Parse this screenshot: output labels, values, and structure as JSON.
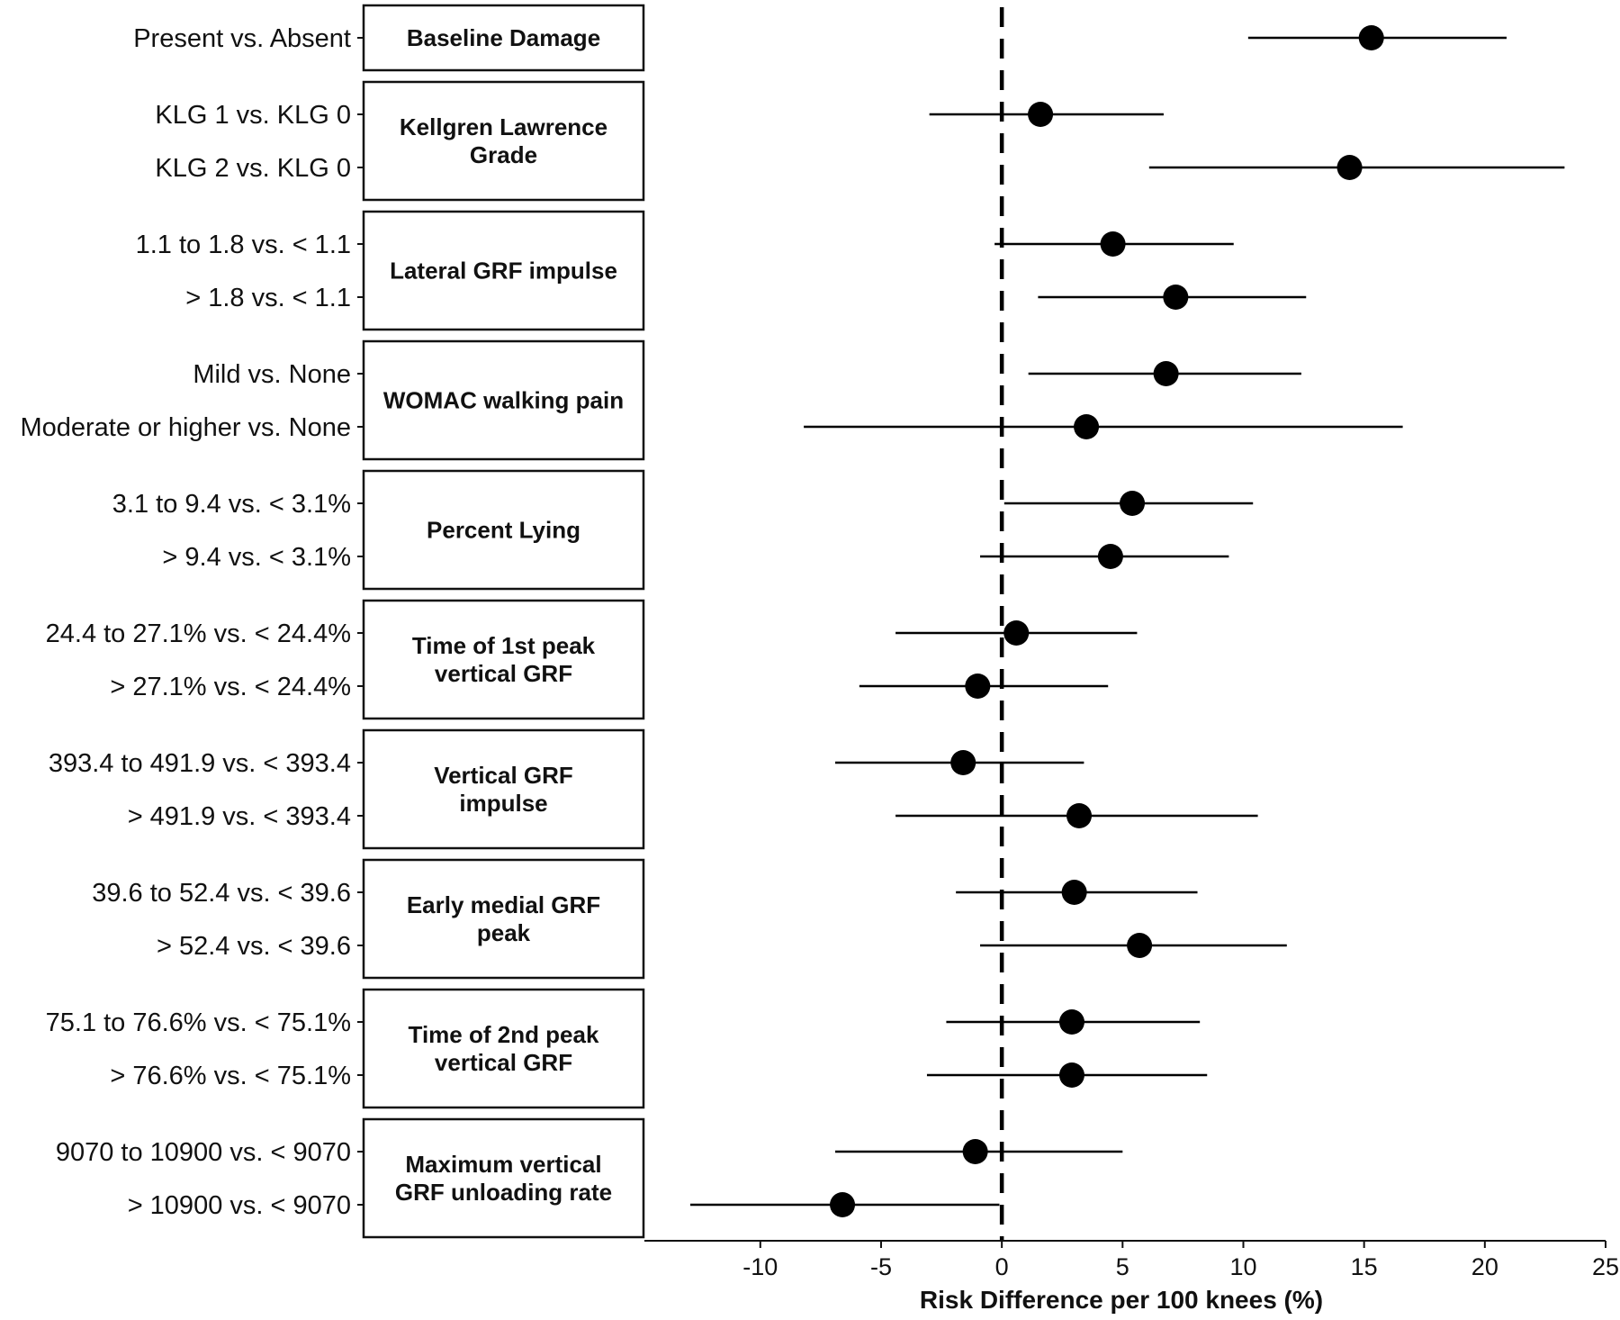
{
  "chart_data": {
    "type": "forest",
    "xlabel": "Risk Difference per 100 knees (%)",
    "xlim": [
      -14.8,
      25
    ],
    "x_ticks": [
      -10,
      -5,
      0,
      5,
      10,
      15,
      20,
      25
    ],
    "reference_line": 0,
    "groups": [
      {
        "label": [
          "Baseline Damage"
        ],
        "rows": [
          {
            "label": "Present vs. Absent",
            "estimate": 15.3,
            "lower": 10.2,
            "upper": 20.9
          }
        ]
      },
      {
        "label": [
          "Kellgren Lawrence",
          "Grade"
        ],
        "rows": [
          {
            "label": "KLG 1 vs. KLG 0",
            "estimate": 1.6,
            "lower": -3.0,
            "upper": 6.7
          },
          {
            "label": "KLG 2 vs. KLG 0",
            "estimate": 14.4,
            "lower": 6.1,
            "upper": 23.3
          }
        ]
      },
      {
        "label": [
          "Lateral GRF impulse"
        ],
        "rows": [
          {
            "label": "1.1 to 1.8 vs. < 1.1",
            "estimate": 4.6,
            "lower": -0.3,
            "upper": 9.6
          },
          {
            "label": "> 1.8 vs. < 1.1",
            "estimate": 7.2,
            "lower": 1.5,
            "upper": 12.6
          }
        ]
      },
      {
        "label": [
          "WOMAC walking pain"
        ],
        "rows": [
          {
            "label": "Mild vs. None",
            "estimate": 6.8,
            "lower": 1.1,
            "upper": 12.4
          },
          {
            "label": "Moderate or higher vs. None",
            "estimate": 3.5,
            "lower": -8.2,
            "upper": 16.6
          }
        ]
      },
      {
        "label": [
          "Percent Lying"
        ],
        "rows": [
          {
            "label": "3.1 to 9.4 vs. < 3.1%",
            "estimate": 5.4,
            "lower": 0.1,
            "upper": 10.4
          },
          {
            "label": "> 9.4 vs. < 3.1%",
            "estimate": 4.5,
            "lower": -0.9,
            "upper": 9.4
          }
        ]
      },
      {
        "label": [
          "Time of 1st peak",
          "vertical GRF"
        ],
        "rows": [
          {
            "label": "24.4 to 27.1% vs. < 24.4%",
            "estimate": 0.6,
            "lower": -4.4,
            "upper": 5.6
          },
          {
            "label": "> 27.1% vs. < 24.4%",
            "estimate": -1.0,
            "lower": -5.9,
            "upper": 4.4
          }
        ]
      },
      {
        "label": [
          "Vertical GRF",
          "impulse"
        ],
        "rows": [
          {
            "label": "393.4 to 491.9 vs. < 393.4",
            "estimate": -1.6,
            "lower": -6.9,
            "upper": 3.4
          },
          {
            "label": "> 491.9 vs. < 393.4",
            "estimate": 3.2,
            "lower": -4.4,
            "upper": 10.6
          }
        ]
      },
      {
        "label": [
          "Early medial GRF",
          "peak"
        ],
        "rows": [
          {
            "label": "39.6 to 52.4 vs. < 39.6",
            "estimate": 3.0,
            "lower": -1.9,
            "upper": 8.1
          },
          {
            "label": "> 52.4 vs. < 39.6",
            "estimate": 5.7,
            "lower": -0.9,
            "upper": 11.8
          }
        ]
      },
      {
        "label": [
          "Time of 2nd peak",
          "vertical GRF"
        ],
        "rows": [
          {
            "label": "75.1 to 76.6% vs. < 75.1%",
            "estimate": 2.9,
            "lower": -2.3,
            "upper": 8.2
          },
          {
            "label": "> 76.6% vs. < 75.1%",
            "estimate": 2.9,
            "lower": -3.1,
            "upper": 8.5
          }
        ]
      },
      {
        "label": [
          "Maximum vertical",
          "GRF unloading rate"
        ],
        "rows": [
          {
            "label": "9070 to 10900 vs. < 9070",
            "estimate": -1.1,
            "lower": -6.9,
            "upper": 5.0
          },
          {
            "label": "> 10900 vs. < 9070",
            "estimate": -6.6,
            "lower": -12.9,
            "upper": -0.1
          }
        ]
      }
    ]
  }
}
